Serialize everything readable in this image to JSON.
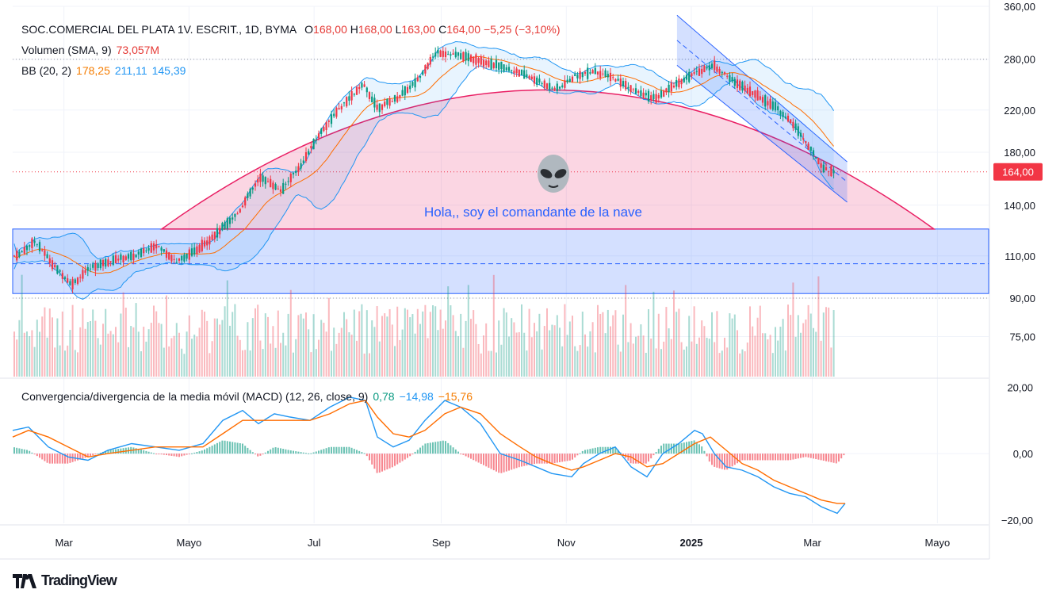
{
  "header": {
    "symbol": "SOC.COMERCIAL DEL PLATA 1V. ESCRIT., 1D, BYMA",
    "o_label": "O",
    "o_value": "168,00",
    "h_label": "H",
    "h_value": "168,00",
    "l_label": "L",
    "l_value": "163,00",
    "c_label": "C",
    "c_value": "164,00",
    "change": "−5,25 (−3,10%)"
  },
  "volume_legend": {
    "label": "Volumen (SMA, 9)",
    "value": "73,057M"
  },
  "bb_legend": {
    "label": "BB (20, 2)",
    "basis": "178,25",
    "upper": "211,11",
    "lower": "145,39"
  },
  "macd_legend": {
    "label": "Convergencia/divergencia de la media móvil (MACD) (12, 26, close, 9)",
    "hist": "0,78",
    "macd": "−14,98",
    "signal": "−15,76"
  },
  "annotation": {
    "text": "Hola,, soy el comandante de la nave",
    "icon": "alien-icon"
  },
  "brand": {
    "text": "TradingView",
    "icon": "tradingview-logo-icon"
  },
  "last_price_label": "164,00",
  "colors": {
    "up": "#089981",
    "down": "#f23645",
    "bb_basis": "#ff6d00",
    "bb_band": "#2196f3",
    "macd": "#2196f3",
    "signal": "#ff6d00",
    "zone": "#2962ff",
    "arc": "#e91e63"
  },
  "chart_data": [
    {
      "type": "candlestick",
      "title": "SOC.COMERCIAL DEL PLATA 1V. ESCRIT., 1D, BYMA",
      "x_ticks": [
        "Mar",
        "Mayo",
        "Jul",
        "Sep",
        "Nov",
        "2025",
        "Mar",
        "Mayo"
      ],
      "y_ticks": [
        "360,00",
        "280,00",
        "220,00",
        "180,00",
        "140,00",
        "110,00",
        "90,00",
        "75,00"
      ],
      "y_scale": "log",
      "ylim": [
        62,
        360
      ],
      "close_path": [
        [
          "2024-02-07",
          110
        ],
        [
          "2024-02-16",
          118
        ],
        [
          "2024-02-25",
          105
        ],
        [
          "2024-03-05",
          96
        ],
        [
          "2024-03-14",
          104
        ],
        [
          "2024-03-25",
          108
        ],
        [
          "2024-04-05",
          110
        ],
        [
          "2024-04-15",
          116
        ],
        [
          "2024-04-25",
          107
        ],
        [
          "2024-05-05",
          113
        ],
        [
          "2024-05-15",
          123
        ],
        [
          "2024-05-25",
          135
        ],
        [
          "2024-06-05",
          160
        ],
        [
          "2024-06-15",
          150
        ],
        [
          "2024-06-25",
          170
        ],
        [
          "2024-07-05",
          200
        ],
        [
          "2024-07-15",
          225
        ],
        [
          "2024-07-25",
          248
        ],
        [
          "2024-08-01",
          222
        ],
        [
          "2024-08-10",
          232
        ],
        [
          "2024-08-20",
          252
        ],
        [
          "2024-08-30",
          290
        ],
        [
          "2024-09-10",
          285
        ],
        [
          "2024-09-20",
          278
        ],
        [
          "2024-10-01",
          270
        ],
        [
          "2024-10-10",
          262
        ],
        [
          "2024-10-20",
          250
        ],
        [
          "2024-10-28",
          243
        ],
        [
          "2024-11-05",
          258
        ],
        [
          "2024-11-15",
          265
        ],
        [
          "2024-11-25",
          255
        ],
        [
          "2024-12-05",
          240
        ],
        [
          "2024-12-15",
          232
        ],
        [
          "2024-12-25",
          250
        ],
        [
          "2025-01-05",
          265
        ],
        [
          "2025-01-12",
          272
        ],
        [
          "2025-01-20",
          255
        ],
        [
          "2025-01-30",
          240
        ],
        [
          "2025-02-10",
          225
        ],
        [
          "2025-02-20",
          205
        ],
        [
          "2025-03-01",
          180
        ],
        [
          "2025-03-07",
          166
        ],
        [
          "2025-03-12",
          164
        ]
      ]
    },
    {
      "type": "bar",
      "title": "Volumen (SMA, 9)",
      "last_value": "73,057M"
    },
    {
      "type": "line",
      "title": "Convergencia/divergencia de la media móvil (MACD) (12, 26, close, 9)",
      "y_ticks": [
        "20,00",
        "0,00",
        "−20,00"
      ],
      "ylim": [
        -21,
        22
      ],
      "series": [
        {
          "name": "MACD",
          "values": [
            [
              0,
              7
            ],
            [
              20,
              8
            ],
            [
              45,
              2
            ],
            [
              70,
              -1
            ],
            [
              95,
              -2
            ],
            [
              120,
              1
            ],
            [
              150,
              3
            ],
            [
              180,
              2
            ],
            [
              210,
              1
            ],
            [
              240,
              3
            ],
            [
              265,
              10
            ],
            [
              290,
              13
            ],
            [
              310,
              9
            ],
            [
              330,
              12
            ],
            [
              350,
              11
            ],
            [
              375,
              10
            ],
            [
              400,
              14
            ],
            [
              425,
              17
            ],
            [
              445,
              16
            ],
            [
              460,
              5
            ],
            [
              480,
              2
            ],
            [
              500,
              4
            ],
            [
              520,
              10
            ],
            [
              545,
              16
            ],
            [
              565,
              14
            ],
            [
              590,
              9
            ],
            [
              615,
              0
            ],
            [
              640,
              -2
            ],
            [
              660,
              -4
            ],
            [
              680,
              -6
            ],
            [
              705,
              -7
            ],
            [
              720,
              -3
            ],
            [
              740,
              0
            ],
            [
              760,
              2
            ],
            [
              780,
              -4
            ],
            [
              800,
              -7
            ],
            [
              820,
              0
            ],
            [
              840,
              3
            ],
            [
              860,
              7
            ],
            [
              870,
              6
            ],
            [
              885,
              0
            ],
            [
              900,
              -4
            ],
            [
              920,
              -5
            ],
            [
              940,
              -7
            ],
            [
              960,
              -10
            ],
            [
              980,
              -12
            ],
            [
              1000,
              -13
            ],
            [
              1020,
              -16
            ],
            [
              1040,
              -18
            ],
            [
              1050,
              -15
            ]
          ]
        },
        {
          "name": "Signal",
          "values": [
            [
              0,
              5
            ],
            [
              20,
              7
            ],
            [
              45,
              5
            ],
            [
              70,
              2
            ],
            [
              95,
              -1
            ],
            [
              120,
              0
            ],
            [
              150,
              1
            ],
            [
              180,
              2
            ],
            [
              210,
              2
            ],
            [
              240,
              2
            ],
            [
              265,
              6
            ],
            [
              290,
              10
            ],
            [
              310,
              10
            ],
            [
              330,
              10
            ],
            [
              350,
              10
            ],
            [
              375,
              10
            ],
            [
              400,
              12
            ],
            [
              425,
              15
            ],
            [
              445,
              16
            ],
            [
              460,
              11
            ],
            [
              480,
              6
            ],
            [
              500,
              5
            ],
            [
              520,
              7
            ],
            [
              545,
              12
            ],
            [
              565,
              14
            ],
            [
              590,
              12
            ],
            [
              615,
              6
            ],
            [
              640,
              2
            ],
            [
              660,
              -1
            ],
            [
              680,
              -3
            ],
            [
              705,
              -5
            ],
            [
              720,
              -4
            ],
            [
              740,
              -2
            ],
            [
              760,
              0
            ],
            [
              780,
              -1
            ],
            [
              800,
              -4
            ],
            [
              820,
              -3
            ],
            [
              840,
              0
            ],
            [
              860,
              3
            ],
            [
              880,
              5
            ],
            [
              900,
              1
            ],
            [
              920,
              -3
            ],
            [
              940,
              -5
            ],
            [
              960,
              -8
            ],
            [
              980,
              -10
            ],
            [
              1000,
              -12
            ],
            [
              1020,
              -14
            ],
            [
              1040,
              -15
            ],
            [
              1050,
              -15
            ]
          ]
        }
      ]
    }
  ]
}
